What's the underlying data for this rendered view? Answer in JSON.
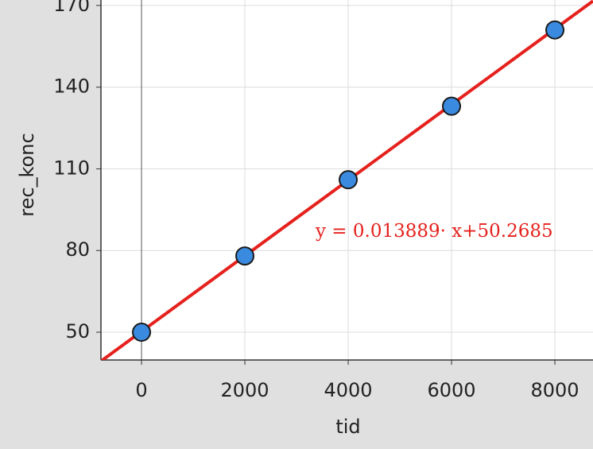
{
  "chart_data": {
    "type": "scatter",
    "x_label": "tid",
    "y_label": "rec_konc",
    "x": [
      0,
      2000,
      4000,
      6000,
      8000
    ],
    "series": [
      {
        "name": "rec_konc",
        "color": "#3a8be0",
        "values": [
          50,
          78,
          106,
          133,
          161
        ]
      }
    ],
    "fit": {
      "slope": 0.013889,
      "intercept": 50.2685,
      "color": "#e5211d",
      "label": "y = 0.013889· x+50.2685"
    },
    "xlim": [
      -785,
      8738
    ],
    "ylim": [
      39.8,
      172
    ],
    "xticks": [
      0,
      2000,
      4000,
      6000,
      8000
    ],
    "yticks": [
      50,
      80,
      110,
      140,
      170
    ],
    "grid": true
  }
}
